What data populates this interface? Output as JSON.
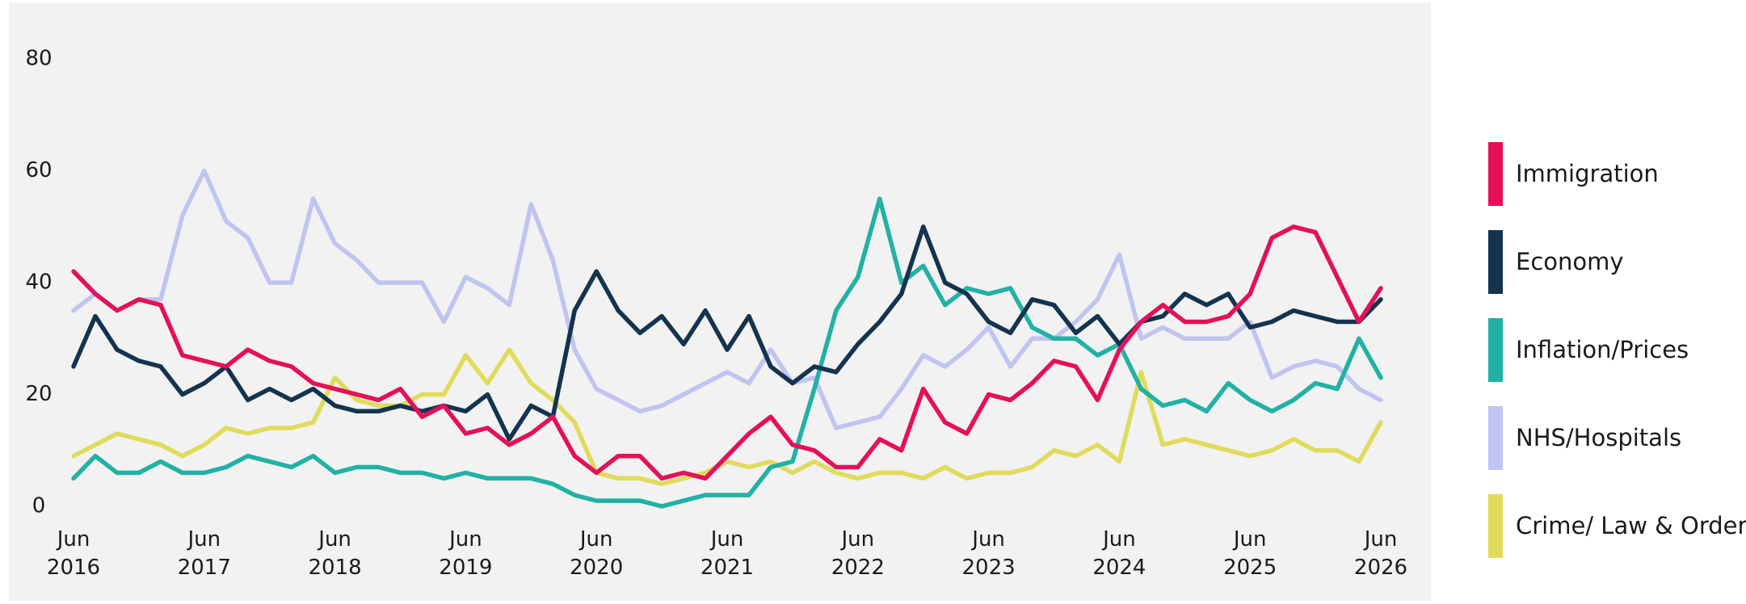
{
  "chart_data": {
    "type": "line",
    "x": [
      "2016-06",
      "2016-08",
      "2016-10",
      "2016-12",
      "2017-02",
      "2017-04",
      "2017-06",
      "2017-08",
      "2017-10",
      "2017-12",
      "2018-02",
      "2018-04",
      "2018-06",
      "2018-08",
      "2018-10",
      "2018-12",
      "2019-02",
      "2019-04",
      "2019-06",
      "2019-08",
      "2019-10",
      "2019-12",
      "2020-02",
      "2020-04",
      "2020-06",
      "2020-08",
      "2020-10",
      "2020-12",
      "2021-02",
      "2021-04",
      "2021-06",
      "2021-08",
      "2021-10",
      "2021-12",
      "2022-02",
      "2022-04",
      "2022-06",
      "2022-08",
      "2022-10",
      "2022-12",
      "2023-02",
      "2023-04",
      "2023-06",
      "2023-08",
      "2023-10",
      "2023-12",
      "2024-02",
      "2024-04",
      "2024-06",
      "2024-08",
      "2024-10",
      "2024-12",
      "2025-02",
      "2025-04",
      "2025-06",
      "2025-08",
      "2025-10",
      "2025-12",
      "2026-02",
      "2026-04",
      "2026-06"
    ],
    "series": [
      {
        "name": "Immigration",
        "color": "#e4105a",
        "values": [
          42,
          38,
          35,
          37,
          36,
          27,
          26,
          25,
          28,
          26,
          25,
          22,
          21,
          20,
          19,
          21,
          16,
          18,
          13,
          14,
          11,
          13,
          16,
          9,
          6,
          9,
          9,
          5,
          6,
          5,
          9,
          13,
          16,
          11,
          10,
          7,
          7,
          12,
          10,
          21,
          15,
          13,
          20,
          19,
          22,
          26,
          25,
          19,
          28,
          33,
          36,
          33,
          33,
          34,
          38,
          48,
          50,
          49,
          41,
          33,
          39
        ]
      },
      {
        "name": "Economy",
        "color": "#14334f",
        "values": [
          25,
          34,
          28,
          26,
          25,
          20,
          22,
          25,
          19,
          21,
          19,
          21,
          18,
          17,
          17,
          18,
          17,
          18,
          17,
          20,
          12,
          18,
          16,
          35,
          42,
          35,
          31,
          34,
          29,
          35,
          28,
          34,
          25,
          22,
          25,
          24,
          29,
          33,
          38,
          50,
          40,
          38,
          33,
          31,
          37,
          36,
          31,
          34,
          29,
          33,
          34,
          38,
          36,
          38,
          32,
          33,
          35,
          34,
          33,
          33,
          37
        ]
      },
      {
        "name": "Inflation/Prices",
        "color": "#21b1a5",
        "values": [
          5,
          9,
          6,
          6,
          8,
          6,
          6,
          7,
          9,
          8,
          7,
          9,
          6,
          7,
          7,
          6,
          6,
          5,
          6,
          5,
          5,
          5,
          4,
          2,
          1,
          1,
          1,
          0,
          1,
          2,
          2,
          2,
          7,
          8,
          21,
          35,
          41,
          55,
          40,
          43,
          36,
          39,
          38,
          39,
          32,
          30,
          30,
          27,
          29,
          21,
          18,
          19,
          17,
          22,
          19,
          17,
          19,
          22,
          21,
          30,
          23
        ]
      },
      {
        "name": "NHS/Hospitals",
        "color": "#c0c4f0",
        "values": [
          35,
          38,
          35,
          37,
          37,
          52,
          60,
          51,
          48,
          40,
          40,
          55,
          47,
          44,
          40,
          40,
          40,
          33,
          41,
          39,
          36,
          54,
          44,
          28,
          21,
          19,
          17,
          18,
          20,
          22,
          24,
          22,
          28,
          22,
          23,
          14,
          15,
          16,
          21,
          27,
          25,
          28,
          32,
          25,
          30,
          30,
          33,
          37,
          45,
          30,
          32,
          30,
          30,
          30,
          33,
          23,
          25,
          26,
          25,
          21,
          19
        ]
      },
      {
        "name": "Crime/ Law & Order",
        "color": "#e0db5b",
        "values": [
          9,
          11,
          13,
          12,
          11,
          9,
          11,
          14,
          13,
          14,
          14,
          15,
          23,
          19,
          18,
          18,
          20,
          20,
          27,
          22,
          28,
          22,
          19,
          15,
          6,
          5,
          5,
          4,
          5,
          6,
          8,
          7,
          8,
          6,
          8,
          6,
          5,
          6,
          6,
          5,
          7,
          5,
          6,
          6,
          7,
          10,
          9,
          11,
          8,
          24,
          11,
          12,
          11,
          10,
          9,
          10,
          12,
          10,
          10,
          8,
          15
        ]
      }
    ],
    "xlim": [
      "2016-06",
      "2026-06"
    ],
    "xticks": [
      {
        "value": "2016-06",
        "label": "Jun 2016"
      },
      {
        "value": "2017-06",
        "label": "Jun 2017"
      },
      {
        "value": "2018-06",
        "label": "Jun 2018"
      },
      {
        "value": "2019-06",
        "label": "Jun 2019"
      },
      {
        "value": "2020-06",
        "label": "Jun 2020"
      },
      {
        "value": "2021-06",
        "label": "Jun 2021"
      },
      {
        "value": "2022-06",
        "label": "Jun 2022"
      },
      {
        "value": "2023-06",
        "label": "Jun 2023"
      },
      {
        "value": "2024-06",
        "label": "Jun 2024"
      },
      {
        "value": "2025-06",
        "label": "Jun 2025"
      },
      {
        "value": "2026-06",
        "label": "Jun 2026"
      }
    ],
    "ylim": [
      0,
      80
    ],
    "yticks": [
      0,
      20,
      40,
      60,
      80
    ],
    "grid": false,
    "legend": "right"
  }
}
